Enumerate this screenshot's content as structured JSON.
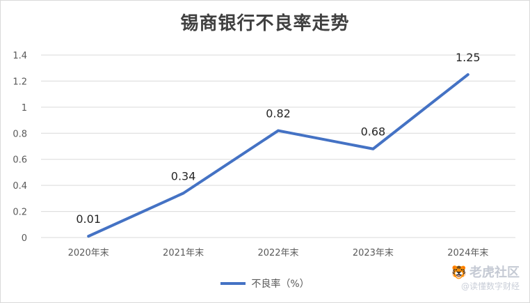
{
  "colors": {
    "series": "#4472c4",
    "grid": "#d9d9d9",
    "axis_text": "#595959",
    "label_text": "#262626"
  },
  "chart_data": {
    "type": "line",
    "title": "锡商银行不良率走势",
    "categories": [
      "2020年末",
      "2021年末",
      "2022年末",
      "2023年末",
      "2024年末"
    ],
    "series": [
      {
        "name": "不良率（%）",
        "values": [
          0.01,
          0.34,
          0.82,
          0.68,
          1.25
        ]
      }
    ],
    "data_labels": [
      "0.01",
      "0.34",
      "0.82",
      "0.68",
      "1.25"
    ],
    "ylim": [
      0,
      1.4
    ],
    "yticks": [
      0,
      0.2,
      0.4,
      0.6,
      0.8,
      1,
      1.2,
      1.4
    ],
    "ytick_labels": [
      "0",
      "0.2",
      "0.4",
      "0.6",
      "0.8",
      "1",
      "1.2",
      "1.4"
    ],
    "grid": true,
    "legend_position": "bottom"
  },
  "watermark": {
    "main": "老虎社区",
    "sub": "@读懂数字财经"
  }
}
